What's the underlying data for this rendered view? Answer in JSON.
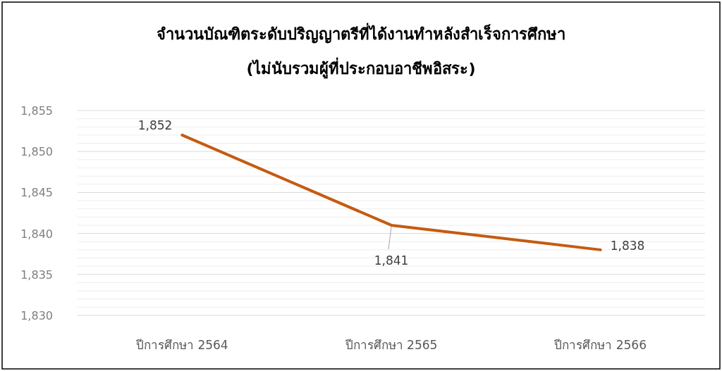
{
  "chart_data": {
    "type": "line",
    "title": "จำนวนบัณฑิตระดับปริญญาตรีที่ได้งานทำหลังสำเร็จการศึกษา",
    "subtitle": "(ไม่นับรวมผู้ที่ประกอบอาชีพอิสระ)",
    "categories": [
      "ปีการศึกษา 2564",
      "ปีการศึกษา 2565",
      "ปีการศึกษา 2566"
    ],
    "series": [
      {
        "color": "#c55a11",
        "values": [
          1852,
          1841,
          1838
        ],
        "value_labels": [
          "1,852",
          "1,841",
          "1,838"
        ]
      }
    ],
    "ylim": [
      1830,
      1855
    ],
    "yticks": [
      {
        "value": 1830,
        "label": "1,830"
      },
      {
        "value": 1835,
        "label": "1,835"
      },
      {
        "value": 1840,
        "label": "1,840"
      },
      {
        "value": 1845,
        "label": "1,845"
      },
      {
        "value": 1850,
        "label": "1,850"
      },
      {
        "value": 1855,
        "label": "1,855"
      }
    ],
    "grid": "y",
    "marker": "none",
    "line_style": "solid"
  }
}
